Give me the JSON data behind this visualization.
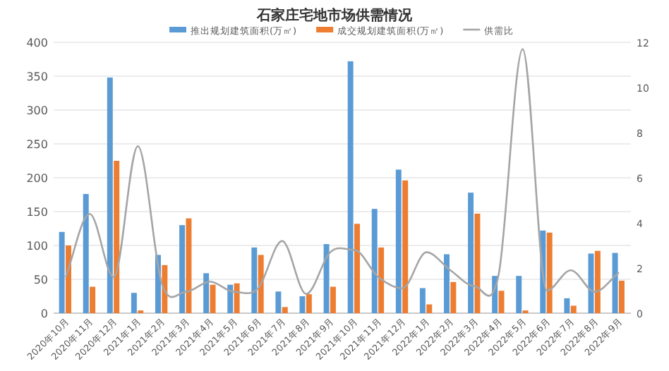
{
  "chart_data": {
    "type": "bar",
    "title": "石家庄宅地市场供需情况",
    "categories": [
      "2020年10月",
      "2020年11月",
      "2020年12月",
      "2021年1月",
      "2021年2月",
      "2021年3月",
      "2021年4月",
      "2021年5月",
      "2021年6月",
      "2021年7月",
      "2021年8月",
      "2021年9月",
      "2021年10月",
      "2021年11月",
      "2021年12月",
      "2022年1月",
      "2022年2月",
      "2022年3月",
      "2022年4月",
      "2022年5月",
      "2022年6月",
      "2022年7月",
      "2022年8月",
      "2022年9月"
    ],
    "series": [
      {
        "name": "推出规划建筑面积(万㎡)",
        "color": "#5b9bd5",
        "values": [
          120,
          176,
          348,
          30,
          86,
          130,
          59,
          42,
          97,
          32,
          25,
          102,
          372,
          154,
          212,
          37,
          87,
          178,
          55,
          55,
          122,
          22,
          88,
          89
        ]
      },
      {
        "name": "成交规划建筑面积(万㎡)",
        "color": "#ed7d31",
        "values": [
          100,
          39,
          225,
          4,
          71,
          140,
          42,
          44,
          86,
          9,
          28,
          39,
          132,
          97,
          196,
          13,
          46,
          147,
          33,
          4,
          119,
          11,
          92,
          48
        ]
      },
      {
        "name": "供需比",
        "color": "#a5a5a5",
        "type": "line",
        "axis": "y2",
        "values": [
          1.6,
          4.4,
          1.6,
          7.4,
          1.3,
          0.95,
          1.4,
          0.95,
          1.1,
          3.2,
          0.85,
          2.7,
          2.8,
          1.6,
          1.1,
          2.7,
          1.9,
          1.2,
          1.7,
          11.7,
          1.0,
          1.9,
          0.95,
          1.8
        ]
      }
    ],
    "ylim": [
      0,
      400
    ],
    "yticks": [
      0,
      50,
      100,
      150,
      200,
      250,
      300,
      350,
      400
    ],
    "y2lim": [
      0,
      12
    ],
    "y2ticks": [
      0,
      2,
      4,
      6,
      8,
      10,
      12
    ],
    "grid": "y",
    "legend": "top",
    "marker": "none",
    "line_style": "solid"
  }
}
